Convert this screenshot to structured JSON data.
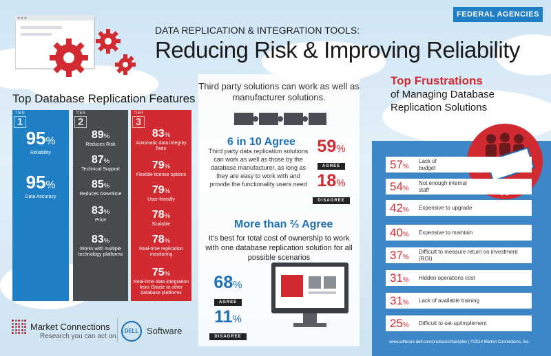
{
  "badge": "FEDERAL AGENCIES",
  "header": {
    "kicker": "DATA REPLICATION & INTEGRATION TOOLS:",
    "title": "Reducing Risk & Improving Reliability"
  },
  "features": {
    "title": "Top Database Replication Features",
    "tier_word": "TIER",
    "tiers": [
      {
        "number": "1",
        "items": [
          {
            "value": "95",
            "label": "Reliability"
          },
          {
            "value": "95",
            "label": "Data Accuracy"
          }
        ]
      },
      {
        "number": "2",
        "items": [
          {
            "value": "89",
            "label": "Reduces Risk"
          },
          {
            "value": "87",
            "label": "Technical Support"
          },
          {
            "value": "85",
            "label": "Reduces Downtime"
          },
          {
            "value": "83",
            "label": "Price"
          },
          {
            "value": "83",
            "label": "Works with multiple technology platforms"
          }
        ]
      },
      {
        "number": "3",
        "items": [
          {
            "value": "83",
            "label": "Automatic data integrity fixes"
          },
          {
            "value": "79",
            "label": "Flexible license options"
          },
          {
            "value": "79",
            "label": "User-friendly"
          },
          {
            "value": "78",
            "label": "Scalable"
          },
          {
            "value": "78",
            "label": "Real-time replication monitoring"
          },
          {
            "value": "75",
            "label": "Real-time data integration from Oracle to other database platforms"
          }
        ]
      }
    ]
  },
  "logos": {
    "mc_name": "Market Connections",
    "mc_tag": "Research you can act on.",
    "dell": "DELL",
    "software": "Software"
  },
  "center": {
    "intro": "Third party solutions can work as well as manufacturer solutions.",
    "sec1": {
      "heading": "6 in 10 Agree",
      "body": "Third party data replication solutions can work as well as those by the database manufacturer, as long as they are easy to work with and provide the functionality users need",
      "agree": "59",
      "agree_label": "AGREE",
      "disagree": "18",
      "disagree_label": "DISAGREE"
    },
    "sec2": {
      "heading": "More than ⅔ Agree",
      "body": "It's best for total cost of ownership to work with one database replication solution for all possible scenarios",
      "agree": "68",
      "agree_label": "AGREE",
      "disagree": "11",
      "disagree_label": "DISAGREE"
    }
  },
  "frustrations": {
    "title": "Top Frustrations",
    "subtitle": "of Managing Database Replication Solutions",
    "items": [
      {
        "value": "57",
        "label": "Lack of budget"
      },
      {
        "value": "54",
        "label": "Not enough internal staff"
      },
      {
        "value": "42",
        "label": "Expensive to upgrade"
      },
      {
        "value": "40",
        "label": "Expensive to maintain"
      },
      {
        "value": "37",
        "label": "Difficult to measure return on investment (ROI)"
      },
      {
        "value": "31",
        "label": "Hidden operations cost"
      },
      {
        "value": "31",
        "label": "Lack of available training"
      },
      {
        "value": "25",
        "label": "Difficult to set-up/implement"
      }
    ]
  },
  "footer": "www.software.dell.com/products/shareplex  |  ©2014 Market Connections, Inc.",
  "pct_sign": "%",
  "colors": {
    "blue": "#1e7fc4",
    "gray": "#474b50",
    "red": "#d12a30",
    "panel_blue": "#3d87c8"
  }
}
